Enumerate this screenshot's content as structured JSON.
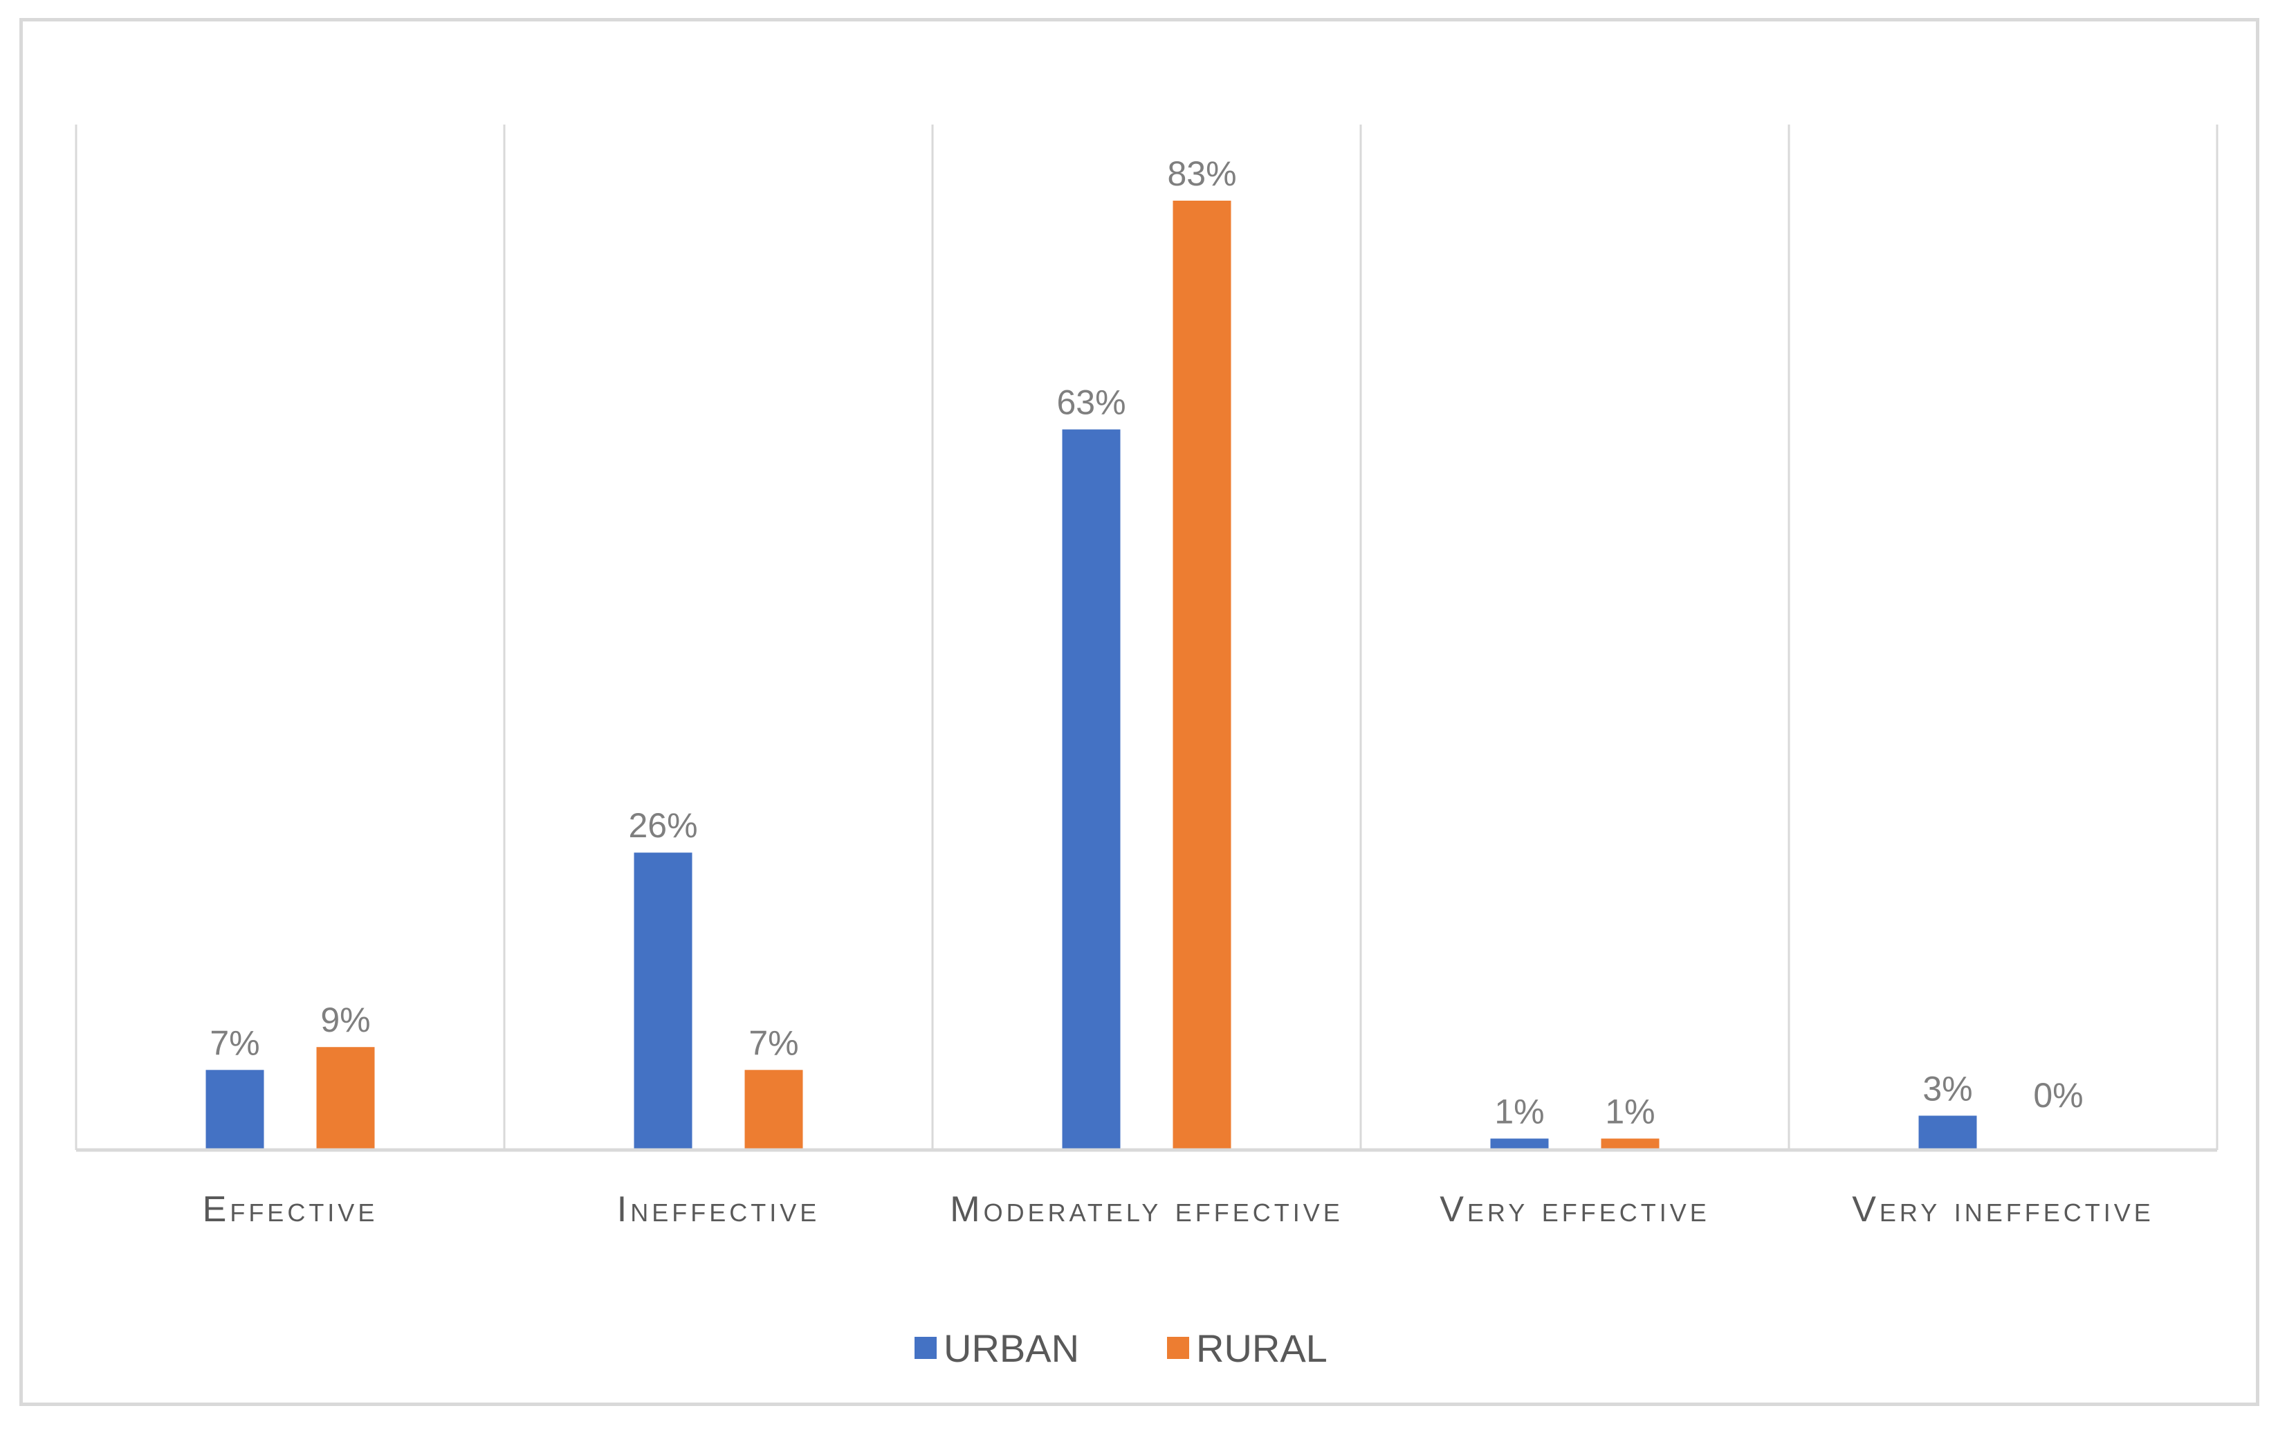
{
  "chart_data": {
    "type": "bar",
    "categories": [
      "Effective",
      "Ineffective",
      "Moderately effective",
      "Very effective",
      "Very ineffective"
    ],
    "series": [
      {
        "name": "URBAN",
        "values": [
          7,
          26,
          63,
          1,
          3
        ],
        "labels": [
          "7%",
          "26%",
          "63%",
          "1%",
          "3%"
        ],
        "color": "#4472c4"
      },
      {
        "name": "RURAL",
        "values": [
          9,
          7,
          83,
          1,
          0
        ],
        "labels": [
          "9%",
          "7%",
          "83%",
          "1%",
          "0%"
        ],
        "color": "#ed7d31"
      }
    ],
    "title": "",
    "xlabel": "",
    "ylabel": "",
    "ylim": [
      0,
      83
    ],
    "grid": "vertical category separators",
    "legend": "bottom-center"
  }
}
